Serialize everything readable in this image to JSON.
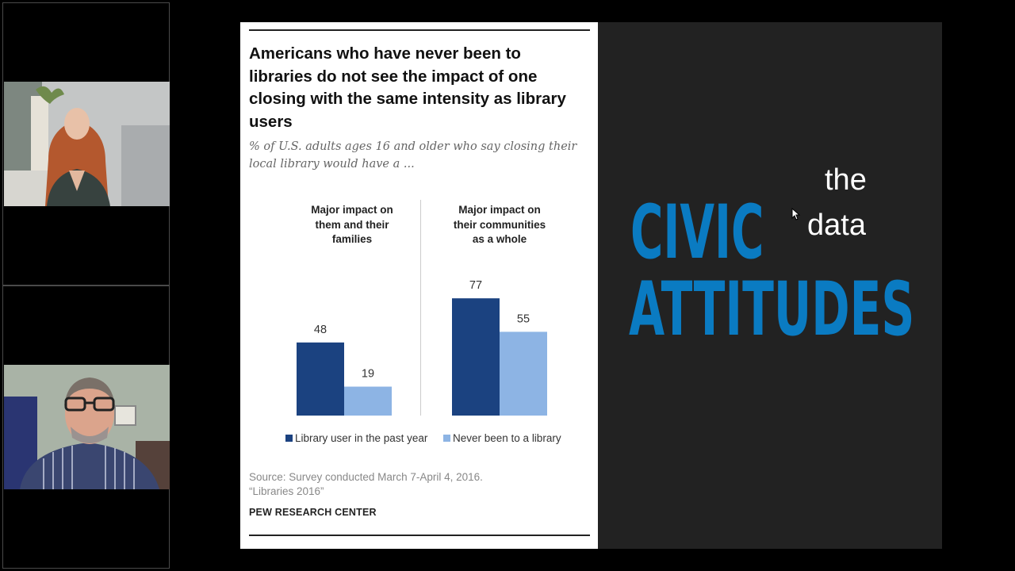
{
  "participants": [
    {
      "name": "participant-woman"
    },
    {
      "name": "participant-man"
    }
  ],
  "slide": {
    "chart": {
      "title": "Americans who have never been to libraries do not see the impact of one closing with the same intensity as library users",
      "subtitle": "% of U.S. adults ages 16 and older who say closing their local library would have a ...",
      "legend": {
        "series1": "Library user in the past year",
        "series2": "Never been to a library"
      },
      "source_line1": "Source: Survey conducted March 7-April 4, 2016.",
      "source_line2": "“Libraries 2016”",
      "brand": "PEW RESEARCH CENTER"
    },
    "side": {
      "word1": "CIVIC",
      "word2": "ATTITUDES",
      "overlay1": "the",
      "overlay2": "data"
    }
  },
  "chart_data": {
    "type": "bar",
    "title": "Americans who have never been to libraries do not see the impact of one closing with the same intensity as library users",
    "subtitle": "% of U.S. adults ages 16 and older who say closing their local library would have a ...",
    "categories": [
      "Major impact on them and their families",
      "Major impact on their communities as a whole"
    ],
    "category_lines": [
      [
        "Major impact on",
        "them and their",
        "families"
      ],
      [
        "Major impact on",
        "their communities",
        "as a whole"
      ]
    ],
    "series": [
      {
        "name": "Library user in the past year",
        "values": [
          48,
          77
        ]
      },
      {
        "name": "Never been to a library",
        "values": [
          19,
          55
        ]
      }
    ],
    "data_labels": [
      [
        "48",
        "19"
      ],
      [
        "77",
        "55"
      ]
    ],
    "ylim": [
      0,
      100
    ],
    "grid": false,
    "legend_position": "bottom",
    "colors": {
      "series1": "#1b4280",
      "series2": "#8db4e4"
    }
  }
}
